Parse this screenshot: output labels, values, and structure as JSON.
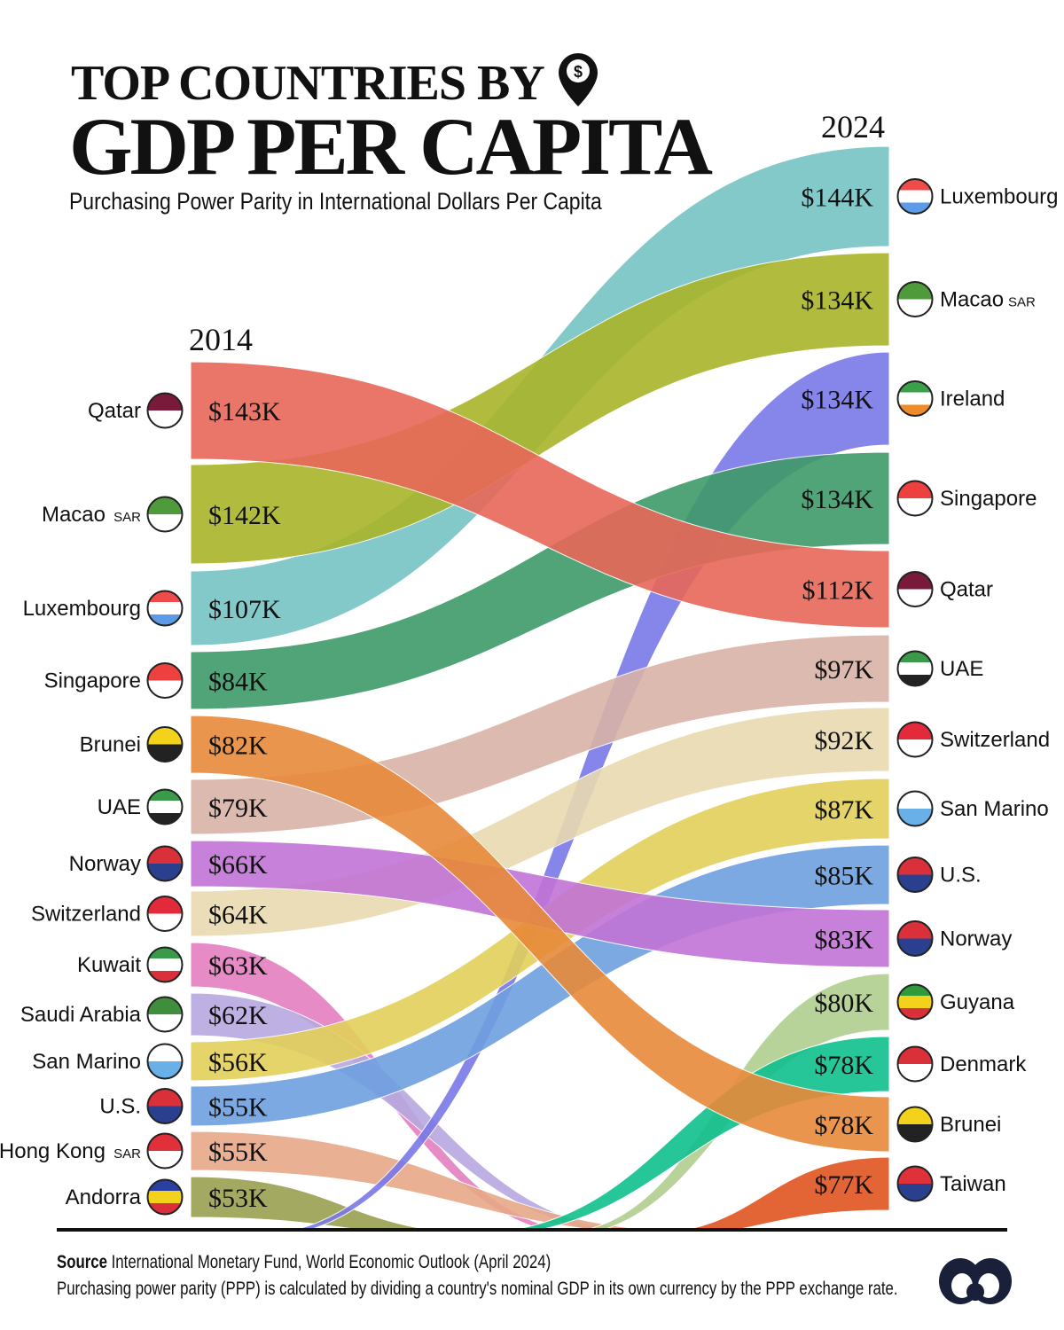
{
  "title_line1": "TOP COUNTRIES BY",
  "title_line2": "GDP PER CAPITA",
  "subtitle": "Purchasing Power Parity in International Dollars Per Capita",
  "footer": {
    "source_label": "Source",
    "source_text": "International Monetary Fund, World Economic Outlook (April 2024)",
    "note": "Purchasing power parity (PPP) is calculated by dividing a country's nominal GDP in its own currency by the PPP exchange rate."
  },
  "chart_data": {
    "type": "bump",
    "left_year": "2014",
    "right_year": "2024",
    "left": [
      {
        "country": "Qatar",
        "value": "$143K",
        "color": "#e8685a"
      },
      {
        "country": "Macao",
        "suffix": "SAR",
        "value": "$142K",
        "color": "#a9b52a"
      },
      {
        "country": "Luxembourg",
        "value": "$107K",
        "color": "#76c4c4"
      },
      {
        "country": "Singapore",
        "value": "$84K",
        "color": "#3f9a6a"
      },
      {
        "country": "Brunei",
        "value": "$82K",
        "color": "#e88a3a"
      },
      {
        "country": "UAE",
        "value": "$79K",
        "color": "#d9b3a8"
      },
      {
        "country": "Norway",
        "value": "$66K",
        "color": "#c274d6"
      },
      {
        "country": "Switzerland",
        "value": "$64K",
        "color": "#e8dab0"
      },
      {
        "country": "Kuwait",
        "value": "$63K",
        "color": "#e47fbf"
      },
      {
        "country": "Saudi Arabia",
        "value": "$62K",
        "color": "#b7a8e0"
      },
      {
        "country": "San Marino",
        "value": "$56K",
        "color": "#e3d05a"
      },
      {
        "country": "U.S.",
        "value": "$55K",
        "color": "#6fa0e0"
      },
      {
        "country": "Hong Kong",
        "suffix": "SAR",
        "value": "$55K",
        "color": "#e8a888"
      },
      {
        "country": "Andorra",
        "value": "$53K",
        "color": "#9aa050"
      }
    ],
    "right": [
      {
        "country": "Luxembourg",
        "value": "$144K",
        "color": "#76c4c4"
      },
      {
        "country": "Macao",
        "suffix": "SAR",
        "value": "$134K",
        "color": "#a9b52a"
      },
      {
        "country": "Ireland",
        "value": "$134K",
        "color": "#7a78e8"
      },
      {
        "country": "Singapore",
        "value": "$134K",
        "color": "#3f9a6a"
      },
      {
        "country": "Qatar",
        "value": "$112K",
        "color": "#e8685a"
      },
      {
        "country": "UAE",
        "value": "$97K",
        "color": "#d9b3a8"
      },
      {
        "country": "Switzerland",
        "value": "$92K",
        "color": "#e8dab0"
      },
      {
        "country": "San Marino",
        "value": "$87K",
        "color": "#e3d05a"
      },
      {
        "country": "U.S.",
        "value": "$85K",
        "color": "#6fa0e0"
      },
      {
        "country": "Norway",
        "value": "$83K",
        "color": "#c274d6"
      },
      {
        "country": "Guyana",
        "value": "$80K",
        "color": "#b0cf90"
      },
      {
        "country": "Denmark",
        "value": "$78K",
        "color": "#10c08e"
      },
      {
        "country": "Brunei",
        "value": "$78K",
        "color": "#e88a3a"
      },
      {
        "country": "Taiwan",
        "value": "$77K",
        "color": "#e05520"
      }
    ],
    "flag_colors": {
      "Qatar": [
        "#7a1a3a",
        "#fff"
      ],
      "Macao": [
        "#4f9a3a",
        "#fff"
      ],
      "Luxembourg": [
        "#ef4b4b",
        "#fff",
        "#5b9be8"
      ],
      "Singapore": [
        "#ef4040",
        "#fff"
      ],
      "Brunei": [
        "#f2d21b",
        "#222"
      ],
      "UAE": [
        "#3a9a4a",
        "#fff",
        "#222"
      ],
      "Norway": [
        "#d9303a",
        "#2b3f8f"
      ],
      "Switzerland": [
        "#e32a3a",
        "#fff"
      ],
      "Kuwait": [
        "#3a9a4a",
        "#fff",
        "#d9303a"
      ],
      "Saudi Arabia": [
        "#3e8e3e",
        "#fff"
      ],
      "San Marino": [
        "#fff",
        "#6ab0e8"
      ],
      "U.S.": [
        "#d9303a",
        "#2b3f8f"
      ],
      "Hong Kong": [
        "#e0303a",
        "#fff"
      ],
      "Andorra": [
        "#2a3f9f",
        "#f2d21b",
        "#d9303a"
      ],
      "Ireland": [
        "#3aa04a",
        "#fff",
        "#f08a2a"
      ],
      "Guyana": [
        "#2e9a3a",
        "#f2d21b",
        "#d9303a"
      ],
      "Denmark": [
        "#d9303a",
        "#fff"
      ],
      "Taiwan": [
        "#e0303a",
        "#2b3f8f"
      ]
    }
  }
}
